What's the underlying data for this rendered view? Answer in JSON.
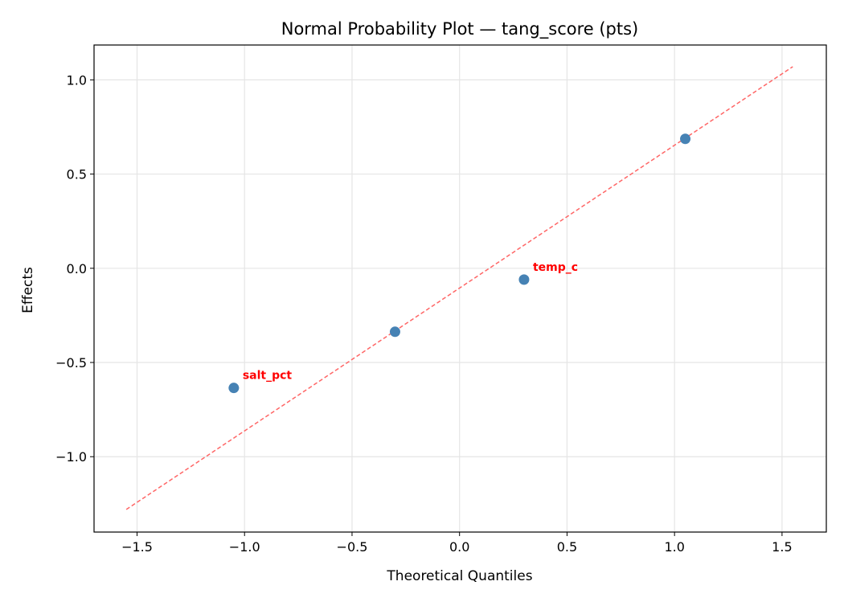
{
  "chart_data": {
    "type": "scatter",
    "title": "Normal Probability Plot — tang_score (pts)",
    "xlabel": "Theoretical Quantiles",
    "ylabel": "Effects",
    "xlim": [
      -1.7,
      1.706
    ],
    "ylim": [
      -1.4,
      1.185
    ],
    "grid": true,
    "xticks": [
      -1.5,
      -1.0,
      -0.5,
      0.0,
      0.5,
      1.0,
      1.5
    ],
    "xtick_labels": [
      "−1.5",
      "−1.0",
      "−0.5",
      "0.0",
      "0.5",
      "1.0",
      "1.5"
    ],
    "yticks": [
      -1.0,
      -0.5,
      0.0,
      0.5,
      1.0
    ],
    "ytick_labels": [
      "−1.0",
      "−0.5",
      "0.0",
      "0.5",
      "1.0"
    ],
    "points": [
      {
        "x": -1.05,
        "y": -0.635,
        "label": "salt_pct"
      },
      {
        "x": -0.3,
        "y": -0.337,
        "label": ""
      },
      {
        "x": 0.3,
        "y": -0.06,
        "label": "temp_c"
      },
      {
        "x": 1.05,
        "y": 0.687,
        "label": ""
      }
    ],
    "reference_line": {
      "x": [
        -1.55,
        1.55
      ],
      "y": [
        -1.28,
        1.07
      ],
      "style": "dashed"
    },
    "colors": {
      "points": "#4682b4",
      "reference_line": "#ff6666",
      "labels": "#ff0000",
      "grid": "#e5e5e5"
    }
  }
}
